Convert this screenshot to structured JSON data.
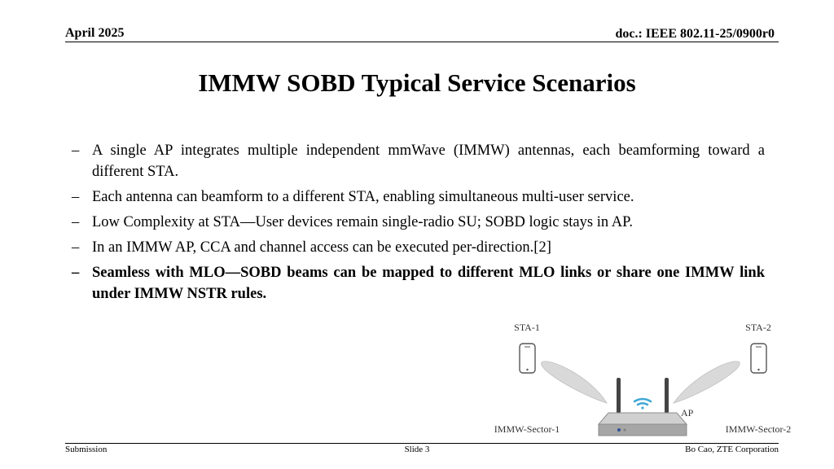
{
  "header": {
    "date": "April 2025",
    "doc_id": "doc.: IEEE 802.11-25/0900r0"
  },
  "title": "IMMW SOBD Typical Service Scenarios",
  "bullets": [
    {
      "dash": "–",
      "text": "A single AP integrates multiple independent mmWave (IMMW) antennas, each beamforming toward a different STA.",
      "bold": false
    },
    {
      "dash": "–",
      "text": "Each antenna can beamform to a different STA, enabling simultaneous multi-user service.",
      "bold": false
    },
    {
      "dash": "–",
      "text": "Low Complexity at STA—User devices remain single-radio SU; SOBD logic stays in AP.",
      "bold": false
    },
    {
      "dash": "–",
      "text": "In an IMMW AP, CCA and channel access can be executed per-direction.[2]",
      "bold": false
    },
    {
      "dash": "–",
      "text": "Seamless with MLO—SOBD beams can be mapped to different MLO links or share one IMMW link under IMMW NSTR rules.",
      "bold": true
    }
  ],
  "diagram": {
    "sta1_label": "STA-1",
    "sta2_label": "STA-2",
    "ap_label": "AP",
    "sector1_label": "IMMW-Sector-1",
    "sector2_label": "IMMW-Sector-2",
    "icons": [
      "phone-icon",
      "phone-icon",
      "wifi-router-icon",
      "wifi-signal-icon"
    ],
    "colors": {
      "beam": "#d9d9d9",
      "router_body": "#bfbfbf",
      "wifi": "#3fa7d6",
      "led": "#2f5597"
    }
  },
  "footer": {
    "left": "Submission",
    "center": "Slide 3",
    "right": "Bo Cao, ZTE Corporation"
  }
}
